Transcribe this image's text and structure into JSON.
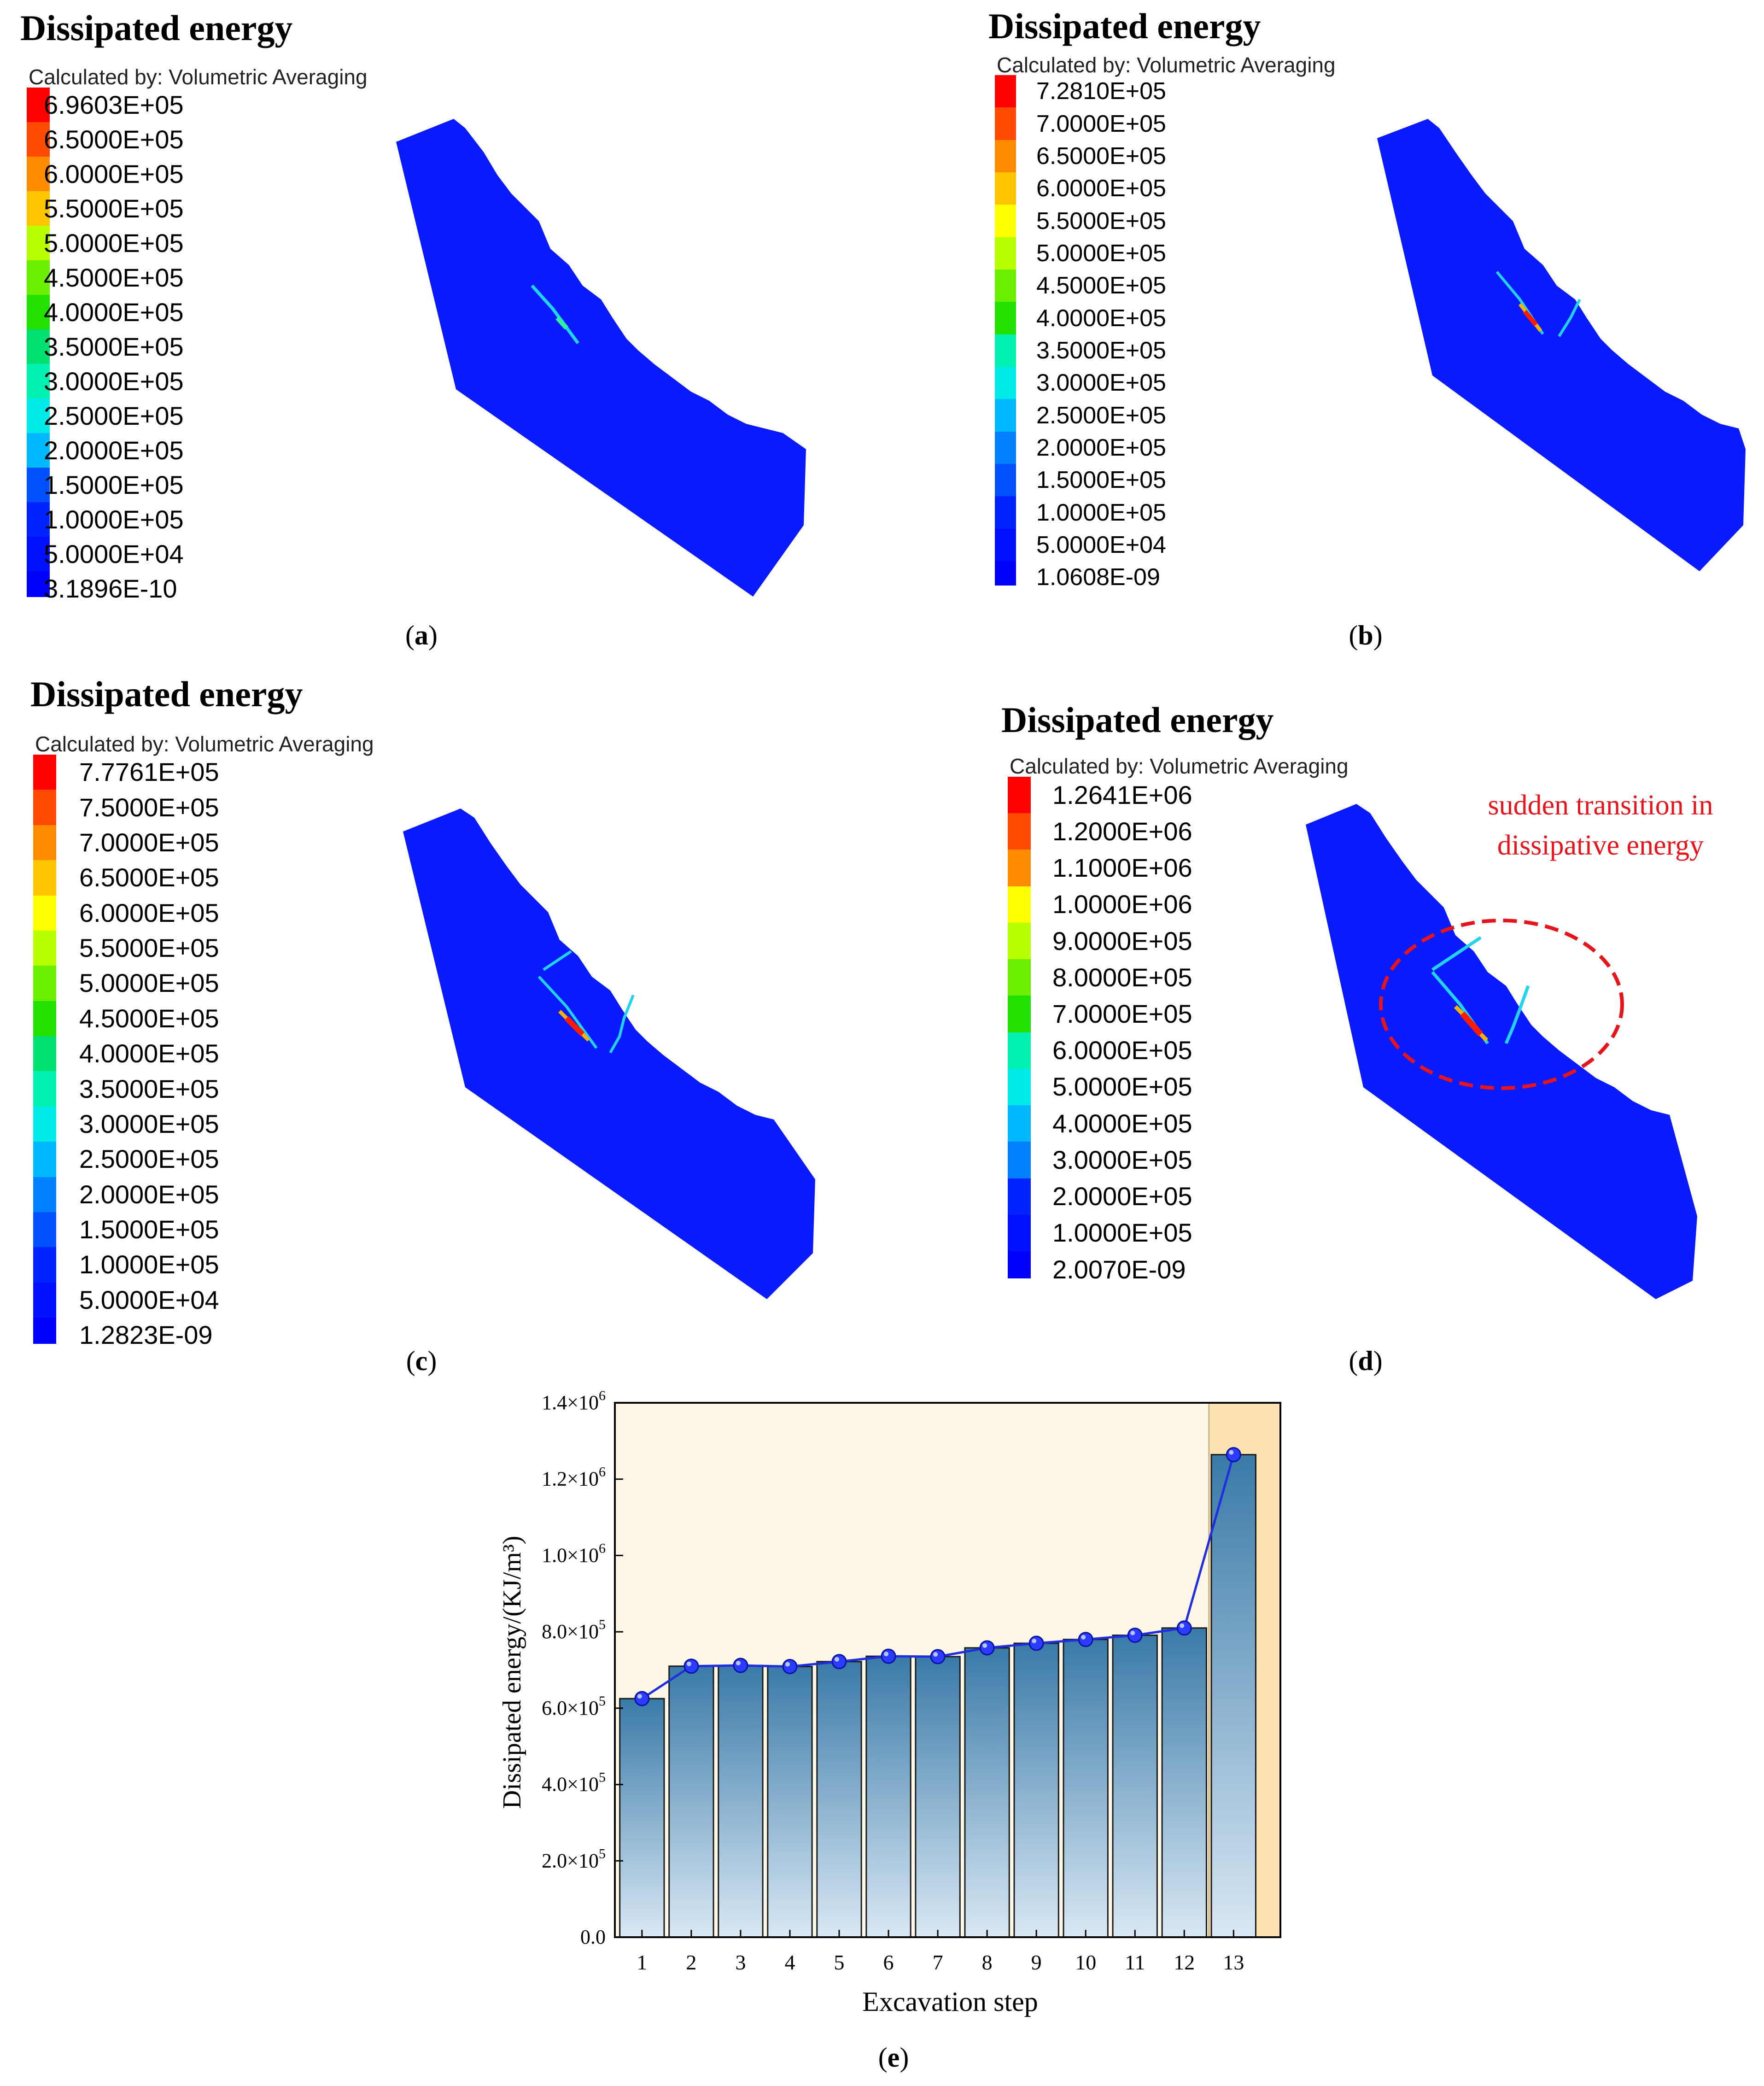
{
  "panels": [
    {
      "id": "a",
      "title": "Dissipated energy",
      "calc": "Calculated by: Volumetric Averaging",
      "legend": [
        "6.9603E+05",
        "6.5000E+05",
        "6.0000E+05",
        "5.5000E+05",
        "5.0000E+05",
        "4.5000E+05",
        "4.0000E+05",
        "3.5000E+05",
        "3.0000E+05",
        "2.5000E+05",
        "2.0000E+05",
        "1.5000E+05",
        "1.0000E+05",
        "5.0000E+04",
        "3.1896E-10"
      ],
      "caption": "a"
    },
    {
      "id": "b",
      "title": "Dissipated energy",
      "calc": "Calculated by: Volumetric Averaging",
      "legend": [
        "7.2810E+05",
        "7.0000E+05",
        "6.5000E+05",
        "6.0000E+05",
        "5.5000E+05",
        "5.0000E+05",
        "4.5000E+05",
        "4.0000E+05",
        "3.5000E+05",
        "3.0000E+05",
        "2.5000E+05",
        "2.0000E+05",
        "1.5000E+05",
        "1.0000E+05",
        "5.0000E+04",
        "1.0608E-09"
      ],
      "caption": "b"
    },
    {
      "id": "c",
      "title": "Dissipated energy",
      "calc": "Calculated by: Volumetric Averaging",
      "legend": [
        "7.7761E+05",
        "7.5000E+05",
        "7.0000E+05",
        "6.5000E+05",
        "6.0000E+05",
        "5.5000E+05",
        "5.0000E+05",
        "4.5000E+05",
        "4.0000E+05",
        "3.5000E+05",
        "3.0000E+05",
        "2.5000E+05",
        "2.0000E+05",
        "1.5000E+05",
        "1.0000E+05",
        "5.0000E+04",
        "1.2823E-09"
      ],
      "caption": "c"
    },
    {
      "id": "d",
      "title": "Dissipated energy",
      "calc": "Calculated by: Volumetric Averaging",
      "legend": [
        "1.2641E+06",
        "1.2000E+06",
        "1.1000E+06",
        "1.0000E+06",
        "9.0000E+05",
        "8.0000E+05",
        "7.0000E+05",
        "6.0000E+05",
        "5.0000E+05",
        "4.0000E+05",
        "3.0000E+05",
        "2.0000E+05",
        "1.0000E+05",
        "2.0070E-09"
      ],
      "caption": "d",
      "annotation": [
        "sudden transition in",
        "dissipative energy"
      ]
    }
  ],
  "colors": {
    "model_blue": "#0a1aff",
    "crack_cyan": "#22d3f0",
    "hot_red": "#ff1a00",
    "annotation_red": "#e8141b",
    "bar_top": "#3a7aa8",
    "bar_bottom": "#d9e8f4",
    "line_blue": "#1f2fe0",
    "bg_region": "#fdf7e8",
    "highlight_region": "#fbe2b0"
  },
  "chart_data": {
    "type": "bar",
    "title": "",
    "xlabel": "Excavation step",
    "ylabel": "Dissipated energy/(KJ/m³)",
    "categories": [
      "1",
      "2",
      "3",
      "4",
      "5",
      "6",
      "7",
      "8",
      "9",
      "10",
      "11",
      "12",
      "13"
    ],
    "values": [
      625000,
      710000,
      712000,
      709000,
      722000,
      736000,
      735000,
      758000,
      770000,
      780000,
      791000,
      810000,
      1264100
    ],
    "line_values": [
      625000,
      710000,
      712000,
      709000,
      722000,
      736000,
      735000,
      758000,
      770000,
      780000,
      791000,
      810000,
      1264100
    ],
    "ylim": [
      0,
      1400000
    ],
    "yticks": [
      0,
      200000,
      400000,
      600000,
      800000,
      1000000,
      1200000,
      1400000
    ],
    "ytick_labels": [
      {
        "mant": "0.0",
        "exp": ""
      },
      {
        "mant": "2.0×10",
        "exp": "5"
      },
      {
        "mant": "4.0×10",
        "exp": "5"
      },
      {
        "mant": "6.0×10",
        "exp": "5"
      },
      {
        "mant": "8.0×10",
        "exp": "5"
      },
      {
        "mant": "1.0×10",
        "exp": "6"
      },
      {
        "mant": "1.2×10",
        "exp": "6"
      },
      {
        "mant": "1.4×10",
        "exp": "6"
      }
    ],
    "highlight_from_step": 12.5,
    "caption": "e"
  }
}
